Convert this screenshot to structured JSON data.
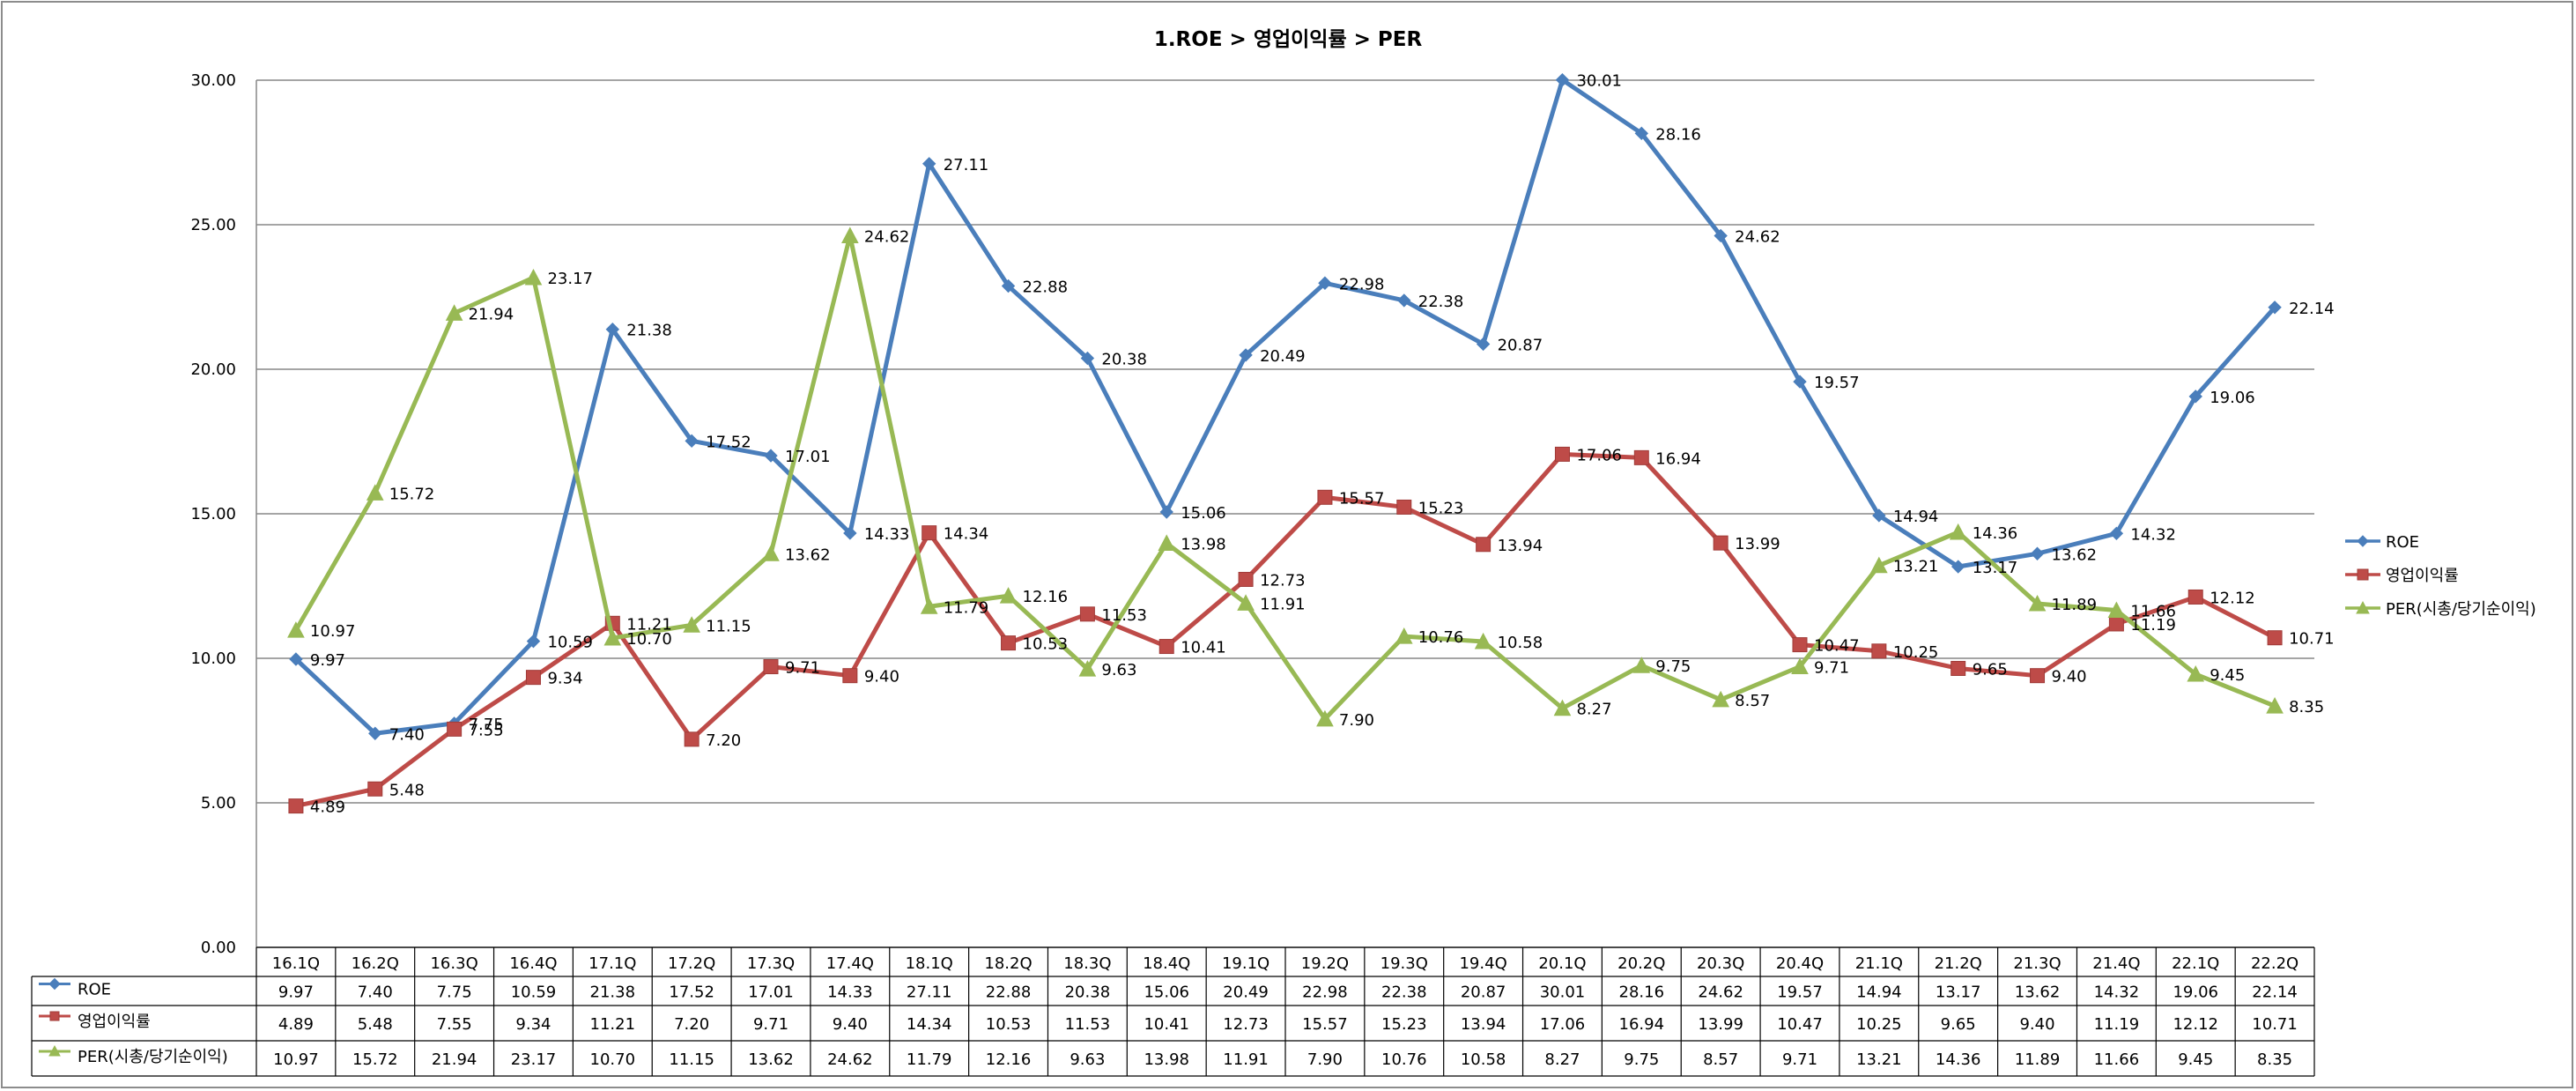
{
  "chart_data": {
    "type": "line",
    "title": "1.ROE > 영업이익률 > PER",
    "xlabel": "",
    "ylabel": "",
    "ylim": [
      0,
      30
    ],
    "yticks": [
      "0.00",
      "5.00",
      "10.00",
      "15.00",
      "20.00",
      "25.00",
      "30.00"
    ],
    "grid": true,
    "legend_position": "right",
    "categories": [
      "16.1Q",
      "16.2Q",
      "16.3Q",
      "16.4Q",
      "17.1Q",
      "17.2Q",
      "17.3Q",
      "17.4Q",
      "18.1Q",
      "18.2Q",
      "18.3Q",
      "18.4Q",
      "19.1Q",
      "19.2Q",
      "19.3Q",
      "19.4Q",
      "20.1Q",
      "20.2Q",
      "20.3Q",
      "20.4Q",
      "21.1Q",
      "21.2Q",
      "21.3Q",
      "21.4Q",
      "22.1Q",
      "22.2Q"
    ],
    "series": [
      {
        "name": "ROE",
        "color": "#4a7ebb",
        "marker": "diamond",
        "values": [
          "9.97",
          "7.40",
          "7.75",
          "10.59",
          "21.38",
          "17.52",
          "17.01",
          "14.33",
          "27.11",
          "22.88",
          "20.38",
          "15.06",
          "20.49",
          "22.98",
          "22.38",
          "20.87",
          "30.01",
          "28.16",
          "24.62",
          "19.57",
          "14.94",
          "13.17",
          "13.62",
          "14.32",
          "19.06",
          "22.14"
        ]
      },
      {
        "name": "영업이익률",
        "color": "#be4b48",
        "marker": "square",
        "values": [
          "4.89",
          "5.48",
          "7.55",
          "9.34",
          "11.21",
          "7.20",
          "9.71",
          "9.40",
          "14.34",
          "10.53",
          "11.53",
          "10.41",
          "12.73",
          "15.57",
          "15.23",
          "13.94",
          "17.06",
          "16.94",
          "13.99",
          "10.47",
          "10.25",
          "9.65",
          "9.40",
          "11.19",
          "12.12",
          "10.71"
        ]
      },
      {
        "name": "PER(시총/당기순이익)",
        "color": "#98b954",
        "marker": "triangle",
        "values": [
          "10.97",
          "15.72",
          "21.94",
          "23.17",
          "10.70",
          "11.15",
          "13.62",
          "24.62",
          "11.79",
          "12.16",
          "9.63",
          "13.98",
          "11.91",
          "7.90",
          "10.76",
          "10.58",
          "8.27",
          "9.75",
          "8.57",
          "9.71",
          "13.21",
          "14.36",
          "11.89",
          "11.66",
          "9.45",
          "8.35"
        ]
      }
    ]
  }
}
